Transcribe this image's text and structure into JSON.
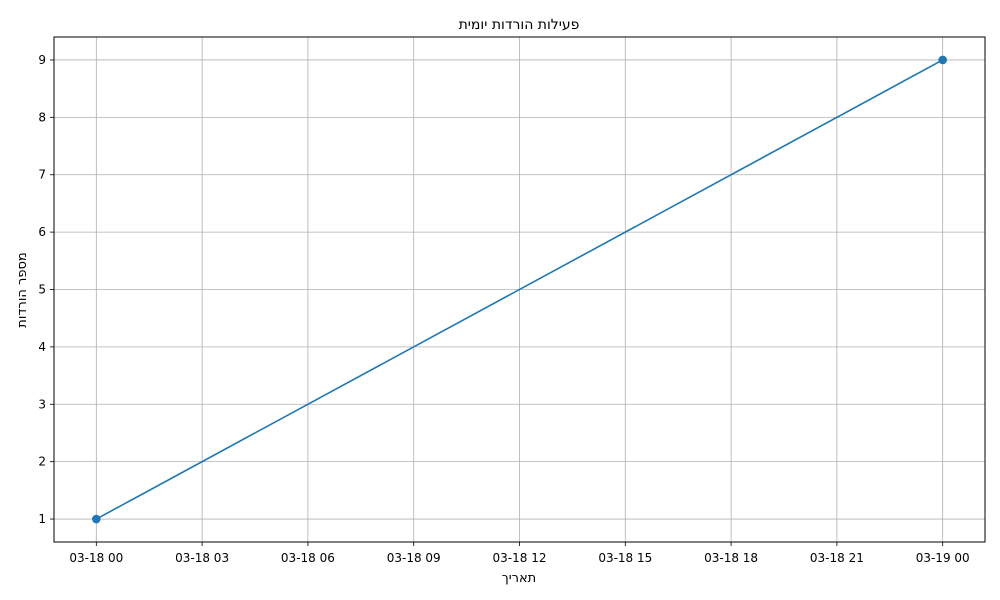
{
  "chart_data": {
    "type": "line",
    "title": "פעילות הורדות יומית",
    "xlabel": "תאריך",
    "ylabel": "מספר הורדות",
    "x": [
      "2024-03-18 00:00",
      "2024-03-19 00:00"
    ],
    "series": [
      {
        "values": [
          1,
          9
        ],
        "color": "#1f77b4",
        "marker": "circle"
      }
    ],
    "x_ticks": [
      "03-18 00",
      "03-18 03",
      "03-18 06",
      "03-18 09",
      "03-18 12",
      "03-18 15",
      "03-18 18",
      "03-18 21",
      "03-19 00"
    ],
    "x_tick_hours": [
      0,
      3,
      6,
      9,
      12,
      15,
      18,
      21,
      24
    ],
    "y_ticks": [
      1,
      2,
      3,
      4,
      5,
      6,
      7,
      8,
      9
    ],
    "xlim_hours": [
      -1.2,
      25.2
    ],
    "ylim": [
      0.6,
      9.4
    ],
    "grid": true,
    "legend": "none"
  }
}
